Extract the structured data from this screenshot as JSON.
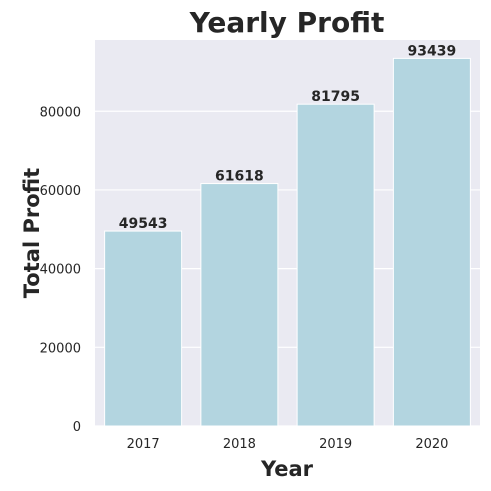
{
  "chart_data": {
    "type": "bar",
    "title": "Yearly Profit",
    "xlabel": "Year",
    "ylabel": "Total Profit",
    "categories": [
      "2017",
      "2018",
      "2019",
      "2020"
    ],
    "values": [
      49543,
      61618,
      81795,
      93439
    ],
    "data_labels": [
      "49543",
      "61618",
      "81795",
      "93439"
    ],
    "yticks": [
      0,
      20000,
      40000,
      60000,
      80000
    ],
    "ytick_labels": [
      "0",
      "20000",
      "40000",
      "60000",
      "80000"
    ],
    "ylim": [
      0,
      98111
    ],
    "grid": true,
    "legend": "none",
    "bar_color": "#b3d5e0",
    "background_color": "#eaeaf2",
    "grid_color": "#ffffff"
  }
}
